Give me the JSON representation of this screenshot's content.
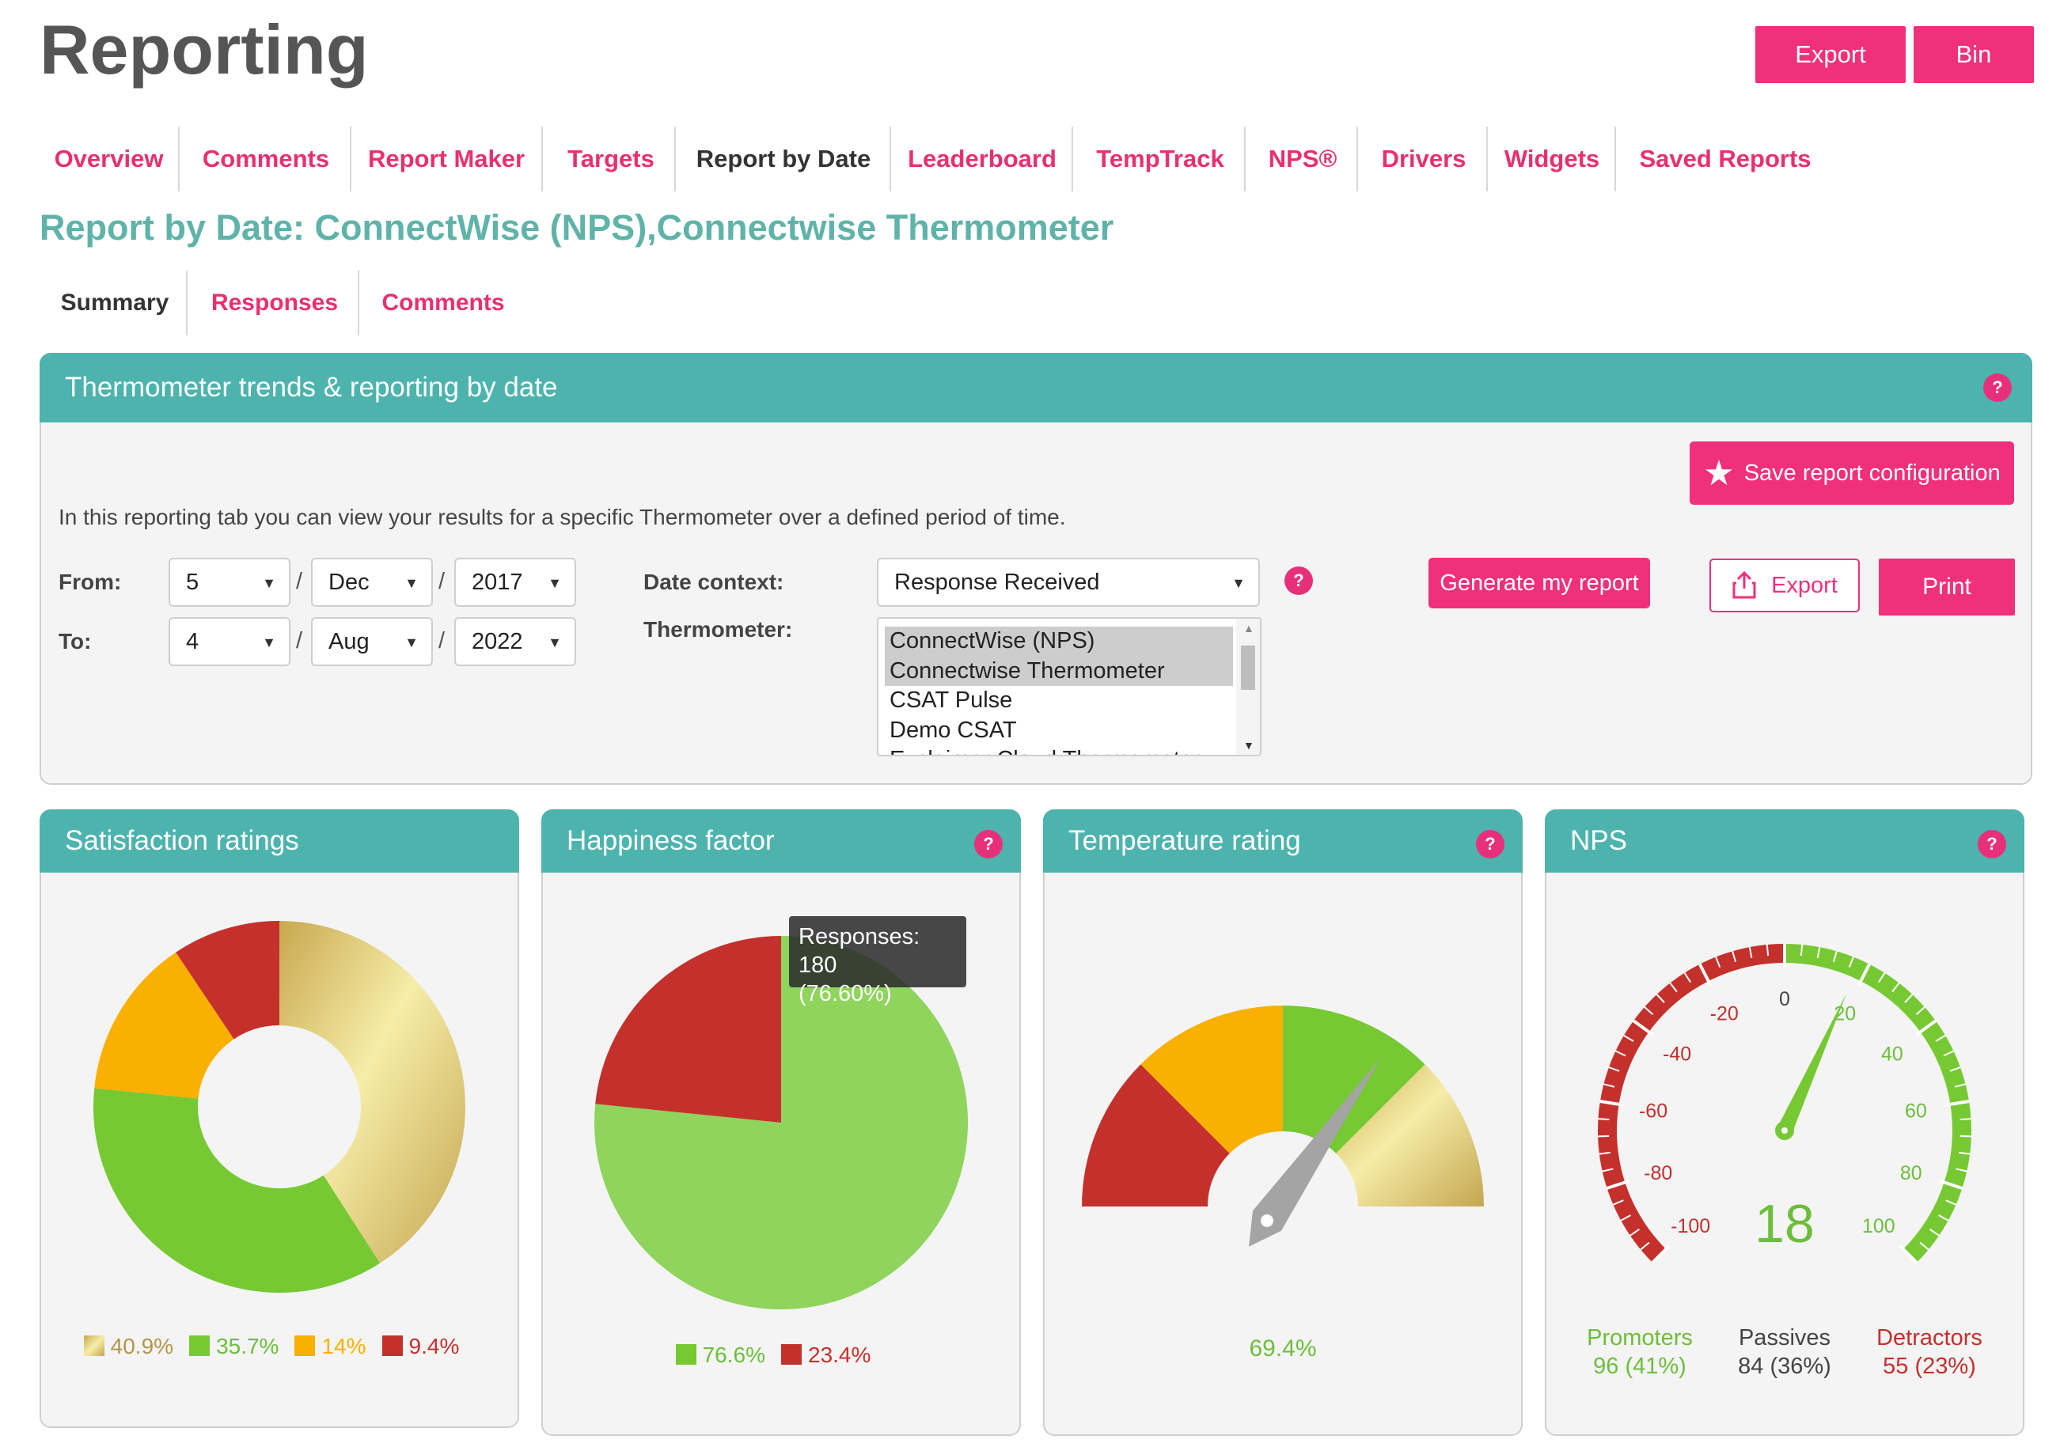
{
  "page": {
    "title": "Reporting"
  },
  "top_actions": {
    "export": "Export",
    "bin": "Bin"
  },
  "nav": [
    "Overview",
    "Comments",
    "Report Maker",
    "Targets",
    "Report by Date",
    "Leaderboard",
    "TempTrack",
    "NPS®",
    "Drivers",
    "Widgets",
    "Saved Reports"
  ],
  "nav_active": "Report by Date",
  "report_heading": "Report by Date: ConnectWise (NPS),Connectwise Thermometer",
  "subtabs": [
    "Summary",
    "Responses",
    "Comments"
  ],
  "subtab_active": "Summary",
  "main_panel": {
    "title": "Thermometer trends & reporting by date",
    "help": "?",
    "save_config": "Save report configuration",
    "intro": "In this reporting tab you can view your results for a specific Thermometer over a defined period of time.",
    "from_label": "From:",
    "to_label": "To:",
    "from": {
      "day": "5",
      "month": "Dec",
      "year": "2017"
    },
    "to": {
      "day": "4",
      "month": "Aug",
      "year": "2022"
    },
    "slash": "/",
    "date_context_label": "Date context:",
    "date_context_value": "Response Received",
    "thermometer_label": "Thermometer:",
    "thermometer_options": [
      "ConnectWise (NPS)",
      "Connectwise Thermometer",
      "CSAT Pulse",
      "Demo CSAT",
      "Exclaimer Cloud Thermometer"
    ],
    "thermometer_selected": [
      0,
      1
    ],
    "generate": "Generate my report",
    "export": "Export",
    "print": "Print"
  },
  "colors": {
    "pink": "#f0307a",
    "teal": "#4db3ad",
    "green": "#76c933",
    "light_green": "#8fd45c",
    "orange": "#f9b000",
    "red": "#c4302b",
    "gold": "#d8c178"
  },
  "cards": {
    "satisfaction": {
      "title": "Satisfaction ratings"
    },
    "happiness": {
      "title": "Happiness factor",
      "help": "?",
      "tooltip_line1": "Responses: 180",
      "tooltip_line2": "(76.60%)"
    },
    "temperature": {
      "title": "Temperature rating",
      "help": "?",
      "value": "69.4%"
    },
    "nps": {
      "title": "NPS",
      "help": "?",
      "score": "18",
      "promoters_label": "Promoters",
      "promoters_value": "96 (41%)",
      "passives_label": "Passives",
      "passives_value": "84 (36%)",
      "detractors_label": "Detractors",
      "detractors_value": "55 (23%)"
    }
  },
  "chart_data": [
    {
      "type": "pie",
      "name": "Satisfaction ratings",
      "donut": true,
      "values": [
        40.9,
        35.7,
        14,
        9.4
      ],
      "labels": [
        "40.9%",
        "35.7%",
        "14%",
        "9.4%"
      ],
      "colors": [
        "#d8c178",
        "#76c933",
        "#f9b000",
        "#c4302b"
      ]
    },
    {
      "type": "pie",
      "name": "Happiness factor",
      "values": [
        76.6,
        23.4
      ],
      "labels": [
        "76.6%",
        "23.4%"
      ],
      "colors": [
        "#8fd45c",
        "#c4302b"
      ]
    },
    {
      "type": "gauge",
      "name": "Temperature rating",
      "bands": [
        "#c4302b",
        "#f9b000",
        "#76c933",
        "#d8c178"
      ],
      "value_percent": 69.4
    },
    {
      "type": "gauge",
      "name": "NPS",
      "min": -100,
      "max": 100,
      "ticks": [
        -100,
        -80,
        -60,
        -40,
        -20,
        0,
        20,
        40,
        60,
        80,
        100
      ],
      "value": 18
    }
  ]
}
